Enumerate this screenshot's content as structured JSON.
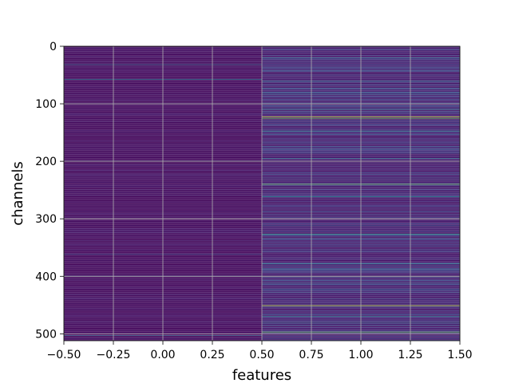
{
  "chart_data": {
    "type": "heatmap",
    "title": "",
    "xlabel": "features",
    "ylabel": "channels",
    "xlim": [
      -0.5,
      1.5
    ],
    "ylim": [
      512,
      0
    ],
    "x_ticks": [
      -0.5,
      -0.25,
      0.0,
      0.25,
      0.5,
      0.75,
      1.0,
      1.25,
      1.5
    ],
    "x_tick_labels": [
      "−0.50",
      "−0.25",
      "0.00",
      "0.25",
      "0.50",
      "0.75",
      "1.00",
      "1.25",
      "1.50"
    ],
    "y_ticks": [
      0,
      100,
      200,
      300,
      400,
      500
    ],
    "y_tick_labels": [
      "0",
      "100",
      "200",
      "300",
      "400",
      "500"
    ],
    "grid": true,
    "colormap": "viridis",
    "columns": [
      0,
      1
    ],
    "rows": 512,
    "column_baseline": [
      0.03,
      0.08
    ],
    "column_noise": [
      0.05,
      0.16
    ],
    "highlights": [
      {
        "column": 0,
        "channel": 32,
        "value": 0.38
      },
      {
        "column": 0,
        "channel": 58,
        "value": 0.55
      },
      {
        "column": 0,
        "channel": 200,
        "value": 0.45
      },
      {
        "column": 0,
        "channel": 362,
        "value": 0.3
      },
      {
        "column": 0,
        "channel": 400,
        "value": 0.5
      },
      {
        "column": 0,
        "channel": 503,
        "value": 0.4
      },
      {
        "column": 1,
        "channel": 20,
        "value": 0.45
      },
      {
        "column": 1,
        "channel": 60,
        "value": 0.4
      },
      {
        "column": 1,
        "channel": 110,
        "value": 0.45
      },
      {
        "column": 1,
        "channel": 123,
        "value": 0.95
      },
      {
        "column": 1,
        "channel": 126,
        "value": 0.85
      },
      {
        "column": 1,
        "channel": 148,
        "value": 0.5
      },
      {
        "column": 1,
        "channel": 195,
        "value": 0.45
      },
      {
        "column": 1,
        "channel": 240,
        "value": 0.85
      },
      {
        "column": 1,
        "channel": 262,
        "value": 0.6
      },
      {
        "column": 1,
        "channel": 327,
        "value": 0.65
      },
      {
        "column": 1,
        "channel": 378,
        "value": 0.5
      },
      {
        "column": 1,
        "channel": 400,
        "value": 0.8
      },
      {
        "column": 1,
        "channel": 412,
        "value": 0.4
      },
      {
        "column": 1,
        "channel": 451,
        "value": 0.95
      },
      {
        "column": 1,
        "channel": 470,
        "value": 0.5
      },
      {
        "column": 1,
        "channel": 480,
        "value": 0.45
      },
      {
        "column": 1,
        "channel": 497,
        "value": 0.85
      }
    ]
  }
}
